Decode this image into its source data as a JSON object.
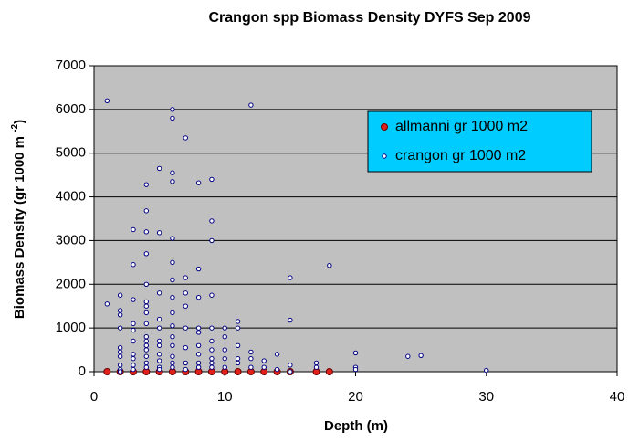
{
  "chart_data": {
    "type": "scatter",
    "title": "Crangon spp Biomass Density DYFS Sep 2009",
    "xlabel": "Depth  (m)",
    "ylabel_parts": [
      "Biomass Density  (gr 1000 m ",
      "-2",
      ")"
    ],
    "xlim": [
      0,
      40
    ],
    "xticks": [
      0,
      10,
      20,
      30,
      40
    ],
    "ylim": [
      0,
      7000
    ],
    "yticks": [
      0,
      1000,
      2000,
      3000,
      4000,
      5000,
      6000,
      7000
    ],
    "grid": true,
    "background": "#c0c0c0",
    "legend": "upper-right",
    "legend_color": "#00ccff",
    "series": [
      {
        "name": "allmanni gr 1000 m2",
        "color": "#e0201a",
        "x": [
          1,
          2,
          3,
          4,
          5,
          6,
          7,
          8,
          9,
          10,
          11,
          12,
          13,
          14,
          15,
          17,
          18
        ],
        "values": [
          0,
          0,
          0,
          0,
          0,
          0,
          0,
          0,
          0,
          0,
          0,
          0,
          0,
          0,
          0,
          0,
          0
        ]
      },
      {
        "name": "crangon gr 1000 m2",
        "color": "#ffffff",
        "x": [
          1,
          1,
          2,
          2,
          2,
          2,
          2,
          2,
          2,
          2,
          2,
          2,
          3,
          3,
          3,
          3,
          3,
          3,
          3,
          3,
          3,
          3,
          4,
          4,
          4,
          4,
          4,
          4,
          4,
          4,
          4,
          4,
          4,
          4,
          4,
          4,
          4,
          4,
          5,
          5,
          5,
          5,
          5,
          5,
          5,
          5,
          5,
          5,
          5,
          6,
          6,
          6,
          6,
          6,
          6,
          6,
          6,
          6,
          6,
          6,
          6,
          6,
          6,
          6,
          7,
          7,
          7,
          7,
          7,
          7,
          7,
          7,
          8,
          8,
          8,
          8,
          8,
          8,
          8,
          8,
          8,
          9,
          9,
          9,
          9,
          9,
          9,
          9,
          9,
          9,
          9,
          10,
          10,
          10,
          10,
          10,
          11,
          11,
          11,
          11,
          11,
          12,
          12,
          12,
          12,
          13,
          13,
          14,
          14,
          15,
          15,
          15,
          15,
          17,
          17,
          18,
          20,
          20,
          20,
          24,
          25,
          30
        ],
        "values": [
          6200,
          1550,
          1750,
          1400,
          1300,
          1000,
          550,
          450,
          350,
          150,
          50,
          0,
          3250,
          2450,
          1650,
          1100,
          950,
          700,
          400,
          300,
          150,
          50,
          4280,
          3680,
          3200,
          2700,
          2000,
          1600,
          1500,
          1350,
          1100,
          800,
          700,
          600,
          500,
          350,
          200,
          100,
          4650,
          3180,
          1800,
          1200,
          1000,
          700,
          600,
          400,
          250,
          100,
          50,
          6000,
          5800,
          4550,
          4350,
          3050,
          2500,
          2100,
          1700,
          1350,
          1050,
          800,
          600,
          350,
          200,
          100,
          5350,
          2150,
          1800,
          1500,
          1000,
          550,
          200,
          50,
          4320,
          2350,
          1700,
          1000,
          900,
          600,
          400,
          200,
          100,
          4400,
          3450,
          3000,
          1750,
          1000,
          700,
          500,
          300,
          200,
          100,
          1000,
          800,
          500,
          300,
          100,
          1150,
          1000,
          600,
          300,
          200,
          6100,
          450,
          300,
          100,
          250,
          100,
          400,
          50,
          2150,
          1180,
          150,
          0,
          200,
          100,
          2430,
          430,
          100,
          50,
          350,
          370,
          30
        ]
      }
    ]
  }
}
